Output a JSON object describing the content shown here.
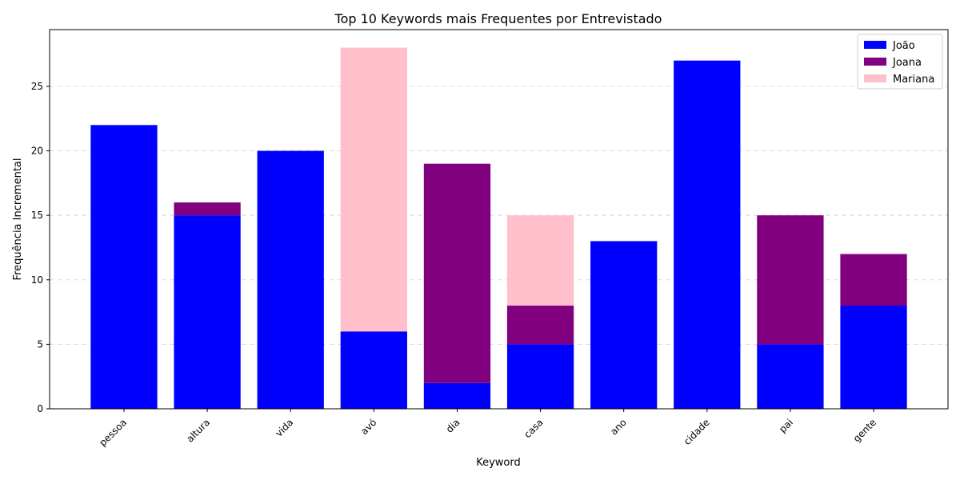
{
  "chart_data": {
    "type": "bar",
    "stacked": true,
    "title": "Top 10 Keywords mais Frequentes por Entrevistado",
    "xlabel": "Keyword",
    "ylabel": "Frequência Incremental",
    "categories": [
      "pessoa",
      "altura",
      "vida",
      "avó",
      "dia",
      "casa",
      "ano",
      "cidade",
      "pai",
      "gente"
    ],
    "series": [
      {
        "name": "João",
        "color": "#0000ff",
        "values": [
          22,
          15,
          20,
          6,
          2,
          5,
          13,
          27,
          5,
          8
        ]
      },
      {
        "name": "Joana",
        "color": "#800080",
        "values": [
          0,
          1,
          0,
          0,
          17,
          3,
          0,
          0,
          10,
          4
        ]
      },
      {
        "name": "Mariana",
        "color": "#ffc0cb",
        "values": [
          0,
          0,
          0,
          22,
          0,
          7,
          0,
          0,
          0,
          0
        ]
      }
    ],
    "ylim": [
      0,
      29.4
    ],
    "yticks": [
      0,
      5,
      10,
      15,
      20,
      25
    ],
    "grid": "y-dashed",
    "legend": "top-right"
  }
}
